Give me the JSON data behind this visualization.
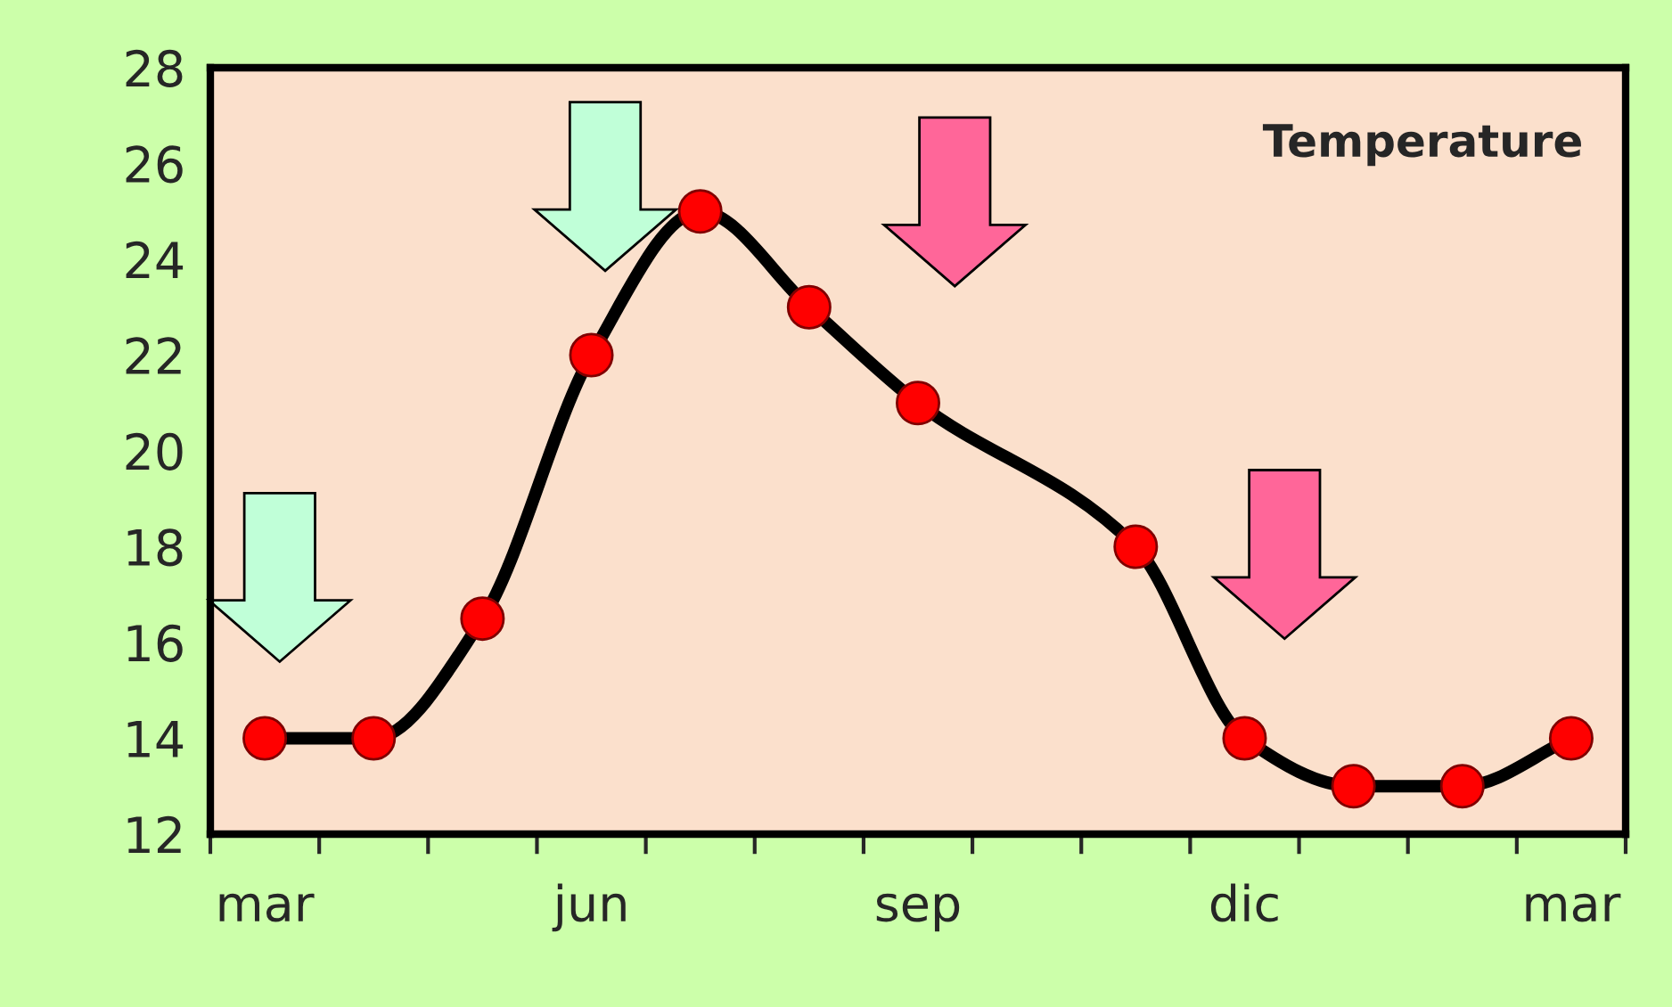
{
  "chart_data": {
    "type": "line",
    "title": "Temperature",
    "categories": [
      "mar",
      null,
      null,
      "jun",
      null,
      null,
      "sep",
      null,
      null,
      "dic",
      null,
      null,
      "mar"
    ],
    "series": [
      {
        "color": "#000000",
        "colors": [
          "#ff0000",
          "#ff0000",
          "#ff0000",
          "#ff0000",
          "#ff0000",
          "#ff0000",
          "#ff0000",
          "#ff0000",
          "#ff0000",
          "#ff0000",
          "#ff0000",
          "#ff0000",
          "#ff0000"
        ],
        "values": [
          14,
          14,
          16.5,
          22,
          25,
          23,
          21,
          null,
          18,
          14,
          13,
          13,
          14
        ]
      }
    ],
    "marker": "circle",
    "line_style": "solid",
    "ylim": [
      12,
      28
    ],
    "yticks": [
      12,
      14,
      16,
      18,
      20,
      22,
      24,
      26,
      28
    ]
  }
}
